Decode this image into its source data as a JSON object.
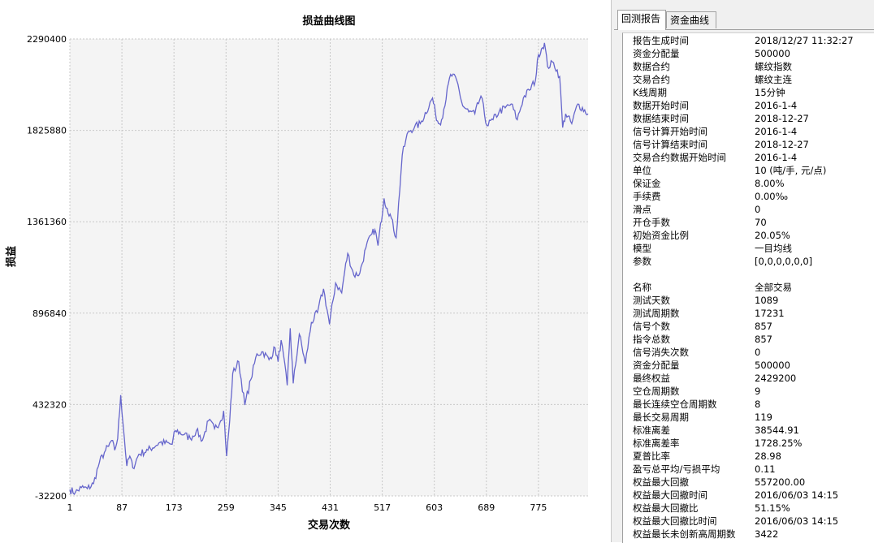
{
  "chart_data": {
    "type": "line",
    "title": "损益曲线图",
    "xlabel": "交易次数",
    "ylabel": "损益",
    "x_ticks": [
      "1",
      "87",
      "173",
      "259",
      "345",
      "431",
      "517",
      "603",
      "689",
      "775"
    ],
    "x_tick_values": [
      1,
      87,
      173,
      259,
      345,
      431,
      517,
      603,
      689,
      775
    ],
    "y_ticks": [
      "-32200",
      "432320",
      "896840",
      "1361360",
      "1825880",
      "2290400"
    ],
    "y_tick_values": [
      -32200,
      432320,
      896840,
      1361360,
      1825880,
      2290400
    ],
    "xlim": [
      1,
      857
    ],
    "ylim": [
      -32200,
      2290400
    ],
    "grid": true,
    "line_color": "#6666cc",
    "series": [
      {
        "x": [
          1,
          10,
          20,
          30,
          40,
          50,
          60,
          65,
          70,
          75,
          80,
          85,
          95,
          100,
          105,
          115,
          130,
          150,
          170,
          175,
          190,
          200,
          210,
          220,
          230,
          240,
          250,
          255,
          260,
          265,
          270,
          280,
          290,
          300,
          310,
          320,
          330,
          340,
          345,
          350,
          360,
          365,
          370,
          380,
          390,
          400,
          410,
          420,
          430,
          440,
          450,
          455,
          460,
          470,
          480,
          490,
          500,
          505,
          510,
          520,
          525,
          530,
          540,
          550,
          560,
          570,
          580,
          600,
          605,
          610,
          615,
          630,
          640,
          650,
          660,
          670,
          680,
          690,
          700,
          710,
          720,
          730,
          740,
          750,
          760,
          770,
          775,
          780,
          785,
          790,
          800,
          810,
          815,
          820,
          830,
          840,
          857
        ],
        "values": [
          0,
          -15000,
          10000,
          5000,
          30000,
          140000,
          200000,
          220000,
          250000,
          200000,
          260000,
          480000,
          120000,
          170000,
          110000,
          180000,
          200000,
          240000,
          230000,
          300000,
          280000,
          260000,
          300000,
          250000,
          350000,
          310000,
          350000,
          400000,
          170000,
          350000,
          590000,
          650000,
          430000,
          560000,
          690000,
          700000,
          660000,
          720000,
          650000,
          760000,
          530000,
          820000,
          540000,
          790000,
          640000,
          850000,
          900000,
          1020000,
          840000,
          1050000,
          1000000,
          1110000,
          1200000,
          1090000,
          1100000,
          1230000,
          1300000,
          1320000,
          1240000,
          1480000,
          1430000,
          1400000,
          1280000,
          1700000,
          1820000,
          1840000,
          1860000,
          1990000,
          1910000,
          1860000,
          1880000,
          2110000,
          2080000,
          1950000,
          1920000,
          1910000,
          2000000,
          1850000,
          1880000,
          1920000,
          1940000,
          1960000,
          1880000,
          1990000,
          2030000,
          2080000,
          2210000,
          2240000,
          2270000,
          2150000,
          2170000,
          2100000,
          1840000,
          1910000,
          1860000,
          1960000,
          1910000
        ]
      }
    ]
  },
  "tabs": [
    {
      "label": "回测报告"
    },
    {
      "label": "资金曲线"
    }
  ],
  "report": [
    {
      "label": "报告生成时间",
      "value": "2018/12/27 11:32:27"
    },
    {
      "label": "资金分配量",
      "value": "500000"
    },
    {
      "label": "数据合约",
      "value": "螺纹指数"
    },
    {
      "label": "交易合约",
      "value": "螺纹主连"
    },
    {
      "label": "K线周期",
      "value": "15分钟"
    },
    {
      "label": "数据开始时间",
      "value": "2016-1-4"
    },
    {
      "label": "数据结束时间",
      "value": "2018-12-27"
    },
    {
      "label": "信号计算开始时间",
      "value": "2016-1-4"
    },
    {
      "label": "信号计算结束时间",
      "value": "2018-12-27"
    },
    {
      "label": "交易合约数据开始时间",
      "value": "2016-1-4"
    },
    {
      "label": "单位",
      "value": "10 (吨/手, 元/点)"
    },
    {
      "label": "保证金",
      "value": "8.00%"
    },
    {
      "label": "手续费",
      "value": "0.00‰"
    },
    {
      "label": "滑点",
      "value": "0"
    },
    {
      "label": "开仓手数",
      "value": "70"
    },
    {
      "label": "初始资金比例",
      "value": "20.05%"
    },
    {
      "label": "模型",
      "value": "一目均线"
    },
    {
      "label": "参数",
      "value": "[0,0,0,0,0,0]"
    },
    {
      "label": "",
      "value": ""
    },
    {
      "label": "名称",
      "value": "全部交易"
    },
    {
      "label": "测试天数",
      "value": "1089"
    },
    {
      "label": "测试周期数",
      "value": "17231"
    },
    {
      "label": "信号个数",
      "value": "857"
    },
    {
      "label": "指令总数",
      "value": "857"
    },
    {
      "label": "信号消失次数",
      "value": "0"
    },
    {
      "label": "资金分配量",
      "value": "500000"
    },
    {
      "label": "最终权益",
      "value": "2429200"
    },
    {
      "label": "空仓周期数",
      "value": "9"
    },
    {
      "label": "最长连续空仓周期数",
      "value": "8"
    },
    {
      "label": "最长交易周期",
      "value": "119"
    },
    {
      "label": "标准离差",
      "value": "38544.91"
    },
    {
      "label": "标准离差率",
      "value": "1728.25%"
    },
    {
      "label": "夏普比率",
      "value": "28.98"
    },
    {
      "label": "盈亏总平均/亏损平均",
      "value": "0.11"
    },
    {
      "label": "权益最大回撤",
      "value": "557200.00"
    },
    {
      "label": "权益最大回撤时间",
      "value": "2016/06/03 14:15"
    },
    {
      "label": "权益最大回撤比",
      "value": "51.15%"
    },
    {
      "label": "权益最大回撤比时间",
      "value": "2016/06/03 14:15"
    },
    {
      "label": "权益最长未创新高周期数",
      "value": "3422"
    }
  ]
}
